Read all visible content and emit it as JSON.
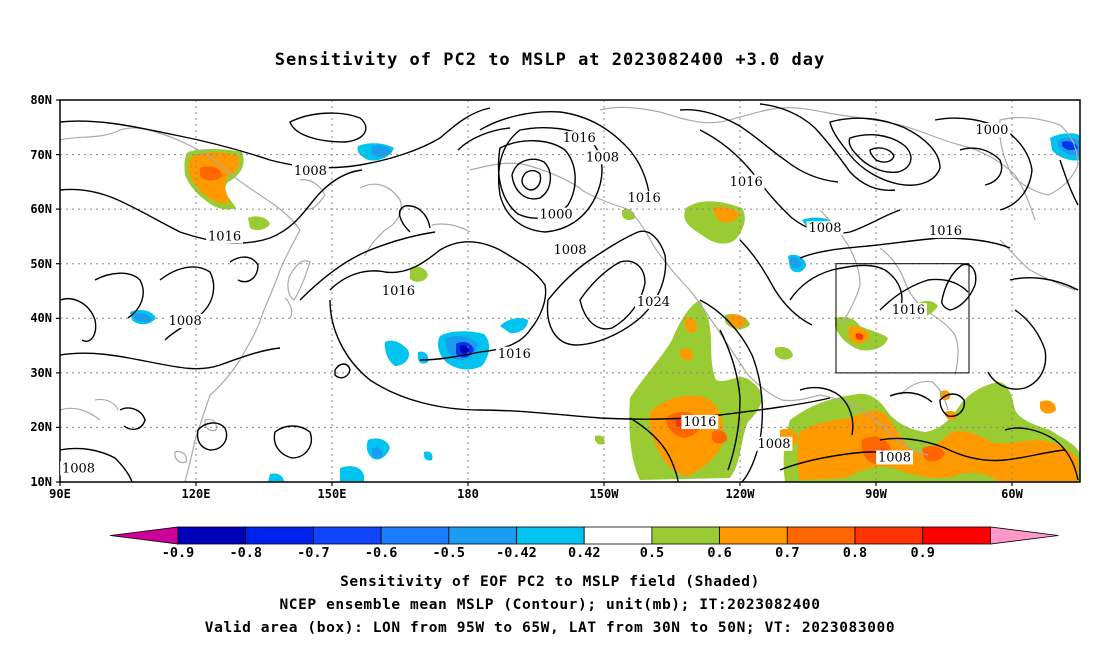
{
  "title": "Sensitivity of PC2 to MSLP at 2023082400 +3.0 day",
  "axes": {
    "lat_labels": [
      "80N",
      "70N",
      "60N",
      "50N",
      "40N",
      "30N",
      "20N",
      "10N"
    ],
    "lon_labels": [
      "90E",
      "120E",
      "150E",
      "180",
      "150W",
      "120W",
      "90W",
      "60W"
    ]
  },
  "contour_labels": [
    {
      "text": "1016",
      "lon": -158,
      "lat": 73
    },
    {
      "text": "1008",
      "lon": -153,
      "lat": 69.5
    },
    {
      "text": "1000",
      "lon": -69,
      "lat": 74.5
    },
    {
      "text": "1008",
      "lon": 144,
      "lat": 67
    },
    {
      "text": "1016",
      "lon": -122,
      "lat": 65
    },
    {
      "text": "1016",
      "lon": -144,
      "lat": 62
    },
    {
      "text": "1000",
      "lon": -163,
      "lat": 59
    },
    {
      "text": "1016",
      "lon": 125.5,
      "lat": 55
    },
    {
      "text": "1008",
      "lon": -105,
      "lat": 56.5
    },
    {
      "text": "1016",
      "lon": -79,
      "lat": 56
    },
    {
      "text": "1008",
      "lon": -160,
      "lat": 52.5
    },
    {
      "text": "1016",
      "lon": 163,
      "lat": 45
    },
    {
      "text": "1024",
      "lon": -142,
      "lat": 43
    },
    {
      "text": "1016",
      "lon": -87,
      "lat": 41.5
    },
    {
      "text": "1008",
      "lon": 117,
      "lat": 39.5
    },
    {
      "text": "1016",
      "lon": -172,
      "lat": 33.5
    },
    {
      "text": "1016",
      "lon": -132,
      "lat": 21
    },
    {
      "text": "1008",
      "lon": -116,
      "lat": 17
    },
    {
      "text": "1008",
      "lon": -90,
      "lat": 14.5
    },
    {
      "text": "1008",
      "lon": 94,
      "lat": 12.5
    }
  ],
  "colorbar": {
    "labels": [
      "-0.9",
      "-0.8",
      "-0.7",
      "-0.6",
      "-0.5",
      "-0.42",
      "0.42",
      "0.5",
      "0.6",
      "0.7",
      "0.8",
      "0.9"
    ],
    "colors": [
      "#cc0099",
      "#0000bb",
      "#0022ee",
      "#1144ff",
      "#1a7cff",
      "#1a9cf0",
      "#00c4f0",
      "#ffffff",
      "#99cc33",
      "#ff9900",
      "#ff6600",
      "#ff3300",
      "#ff0000",
      "#ff99cc"
    ]
  },
  "captions": {
    "line1": "Sensitivity of EOF PC2 to MSLP field (Shaded)",
    "line2": "NCEP ensemble mean MSLP (Contour); unit(mb); IT:2023082400",
    "line3": "Valid area (box): LON from 95W to 65W, LAT from 30N to 50N; VT: 2023083000"
  },
  "valid_box": {
    "lon_west": -95,
    "lon_east": -65,
    "lat_south": 30,
    "lat_north": 50
  }
}
